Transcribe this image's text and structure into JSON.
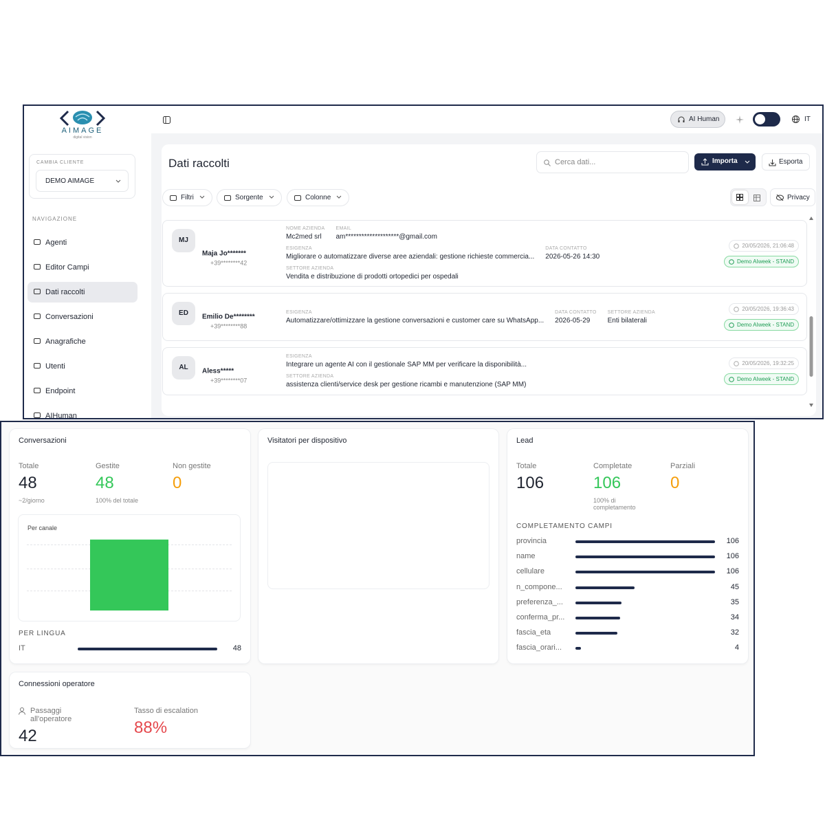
{
  "logo": {
    "name": "AIMAGE",
    "tagline": "digital vision"
  },
  "sidebar": {
    "client_label": "CAMBIA CLIENTE",
    "client": "DEMO AIMAGE",
    "nav_label": "NAVIGAZIONE",
    "nav": [
      "Agenti",
      "Editor Campi",
      "Dati raccolti",
      "Conversazioni",
      "Anagrafiche",
      "Utenti",
      "Endpoint",
      "AIHuman"
    ]
  },
  "topbar": {
    "ai_human": "AI Human",
    "lang": "IT"
  },
  "header": {
    "title": "Dati raccolti",
    "search_placeholder": "Cerca dati...",
    "import": "Importa",
    "export": "Esporta"
  },
  "toolbar": {
    "filters": [
      "Filtri",
      "Sorgente",
      "Colonne"
    ],
    "privacy": "Privacy"
  },
  "records": [
    {
      "initials": "MJ",
      "name": "Maja Jo*******",
      "phone": "+39********42",
      "rows": [
        [
          {
            "label": "NOME AZIENDA",
            "value": "Mc2med srl"
          },
          {
            "label": "EMAIL",
            "value": "am********************@gmail.com"
          }
        ],
        [
          {
            "label": "ESIGENZA",
            "value": "Migliorare o automatizzare diverse aree aziendali: gestione richieste commercia..."
          },
          {
            "label": "DATA CONTATTO",
            "value": "2026-05-26 14:30"
          }
        ],
        [
          {
            "label": "SETTORE AZIENDA",
            "value": "Vendita e distribuzione di prodotti ortopedici per ospedali"
          }
        ]
      ],
      "timestamp": "20/05/2026, 21:06:48",
      "source": "Demo AIweek - STAND"
    },
    {
      "initials": "ED",
      "name": "Emilio De********",
      "phone": "+39********88",
      "rows": [
        [
          {
            "label": "ESIGENZA",
            "value": "Automatizzare/ottimizzare la gestione conversazioni e customer care su WhatsApp..."
          },
          {
            "label": "DATA CONTATTO",
            "value": "2026-05-29"
          },
          {
            "label": "SETTORE AZIENDA",
            "value": "Enti bilaterali"
          }
        ]
      ],
      "timestamp": "20/05/2026, 19:36:43",
      "source": "Demo AIweek - STAND"
    },
    {
      "initials": "AL",
      "name": "Aless*****",
      "phone": "+39********07",
      "rows": [
        [
          {
            "label": "ESIGENZA",
            "value": "Integrare un agente AI con il gestionale SAP MM per verificare la disponibilità..."
          }
        ],
        [
          {
            "label": "SETTORE AZIENDA",
            "value": "assistenza clienti/service desk per gestione ricambi e manutenzione (SAP MM)"
          }
        ]
      ],
      "timestamp": "20/05/2026, 19:32:25",
      "source": "Demo AIweek - STAND"
    }
  ],
  "conversazioni": {
    "title": "Conversazioni",
    "stats": [
      {
        "label": "Totale",
        "value": 48,
        "note": "~2/giorno"
      },
      {
        "label": "Gestite",
        "value": 48,
        "note": "100% del totale"
      },
      {
        "label": "Non gestite",
        "value": 0
      }
    ],
    "per_canale": {
      "title": "Per canale",
      "type": "bar",
      "values": [
        48
      ],
      "color": "#34c759",
      "ylim": [
        0,
        60
      ]
    },
    "per_lingua": {
      "title": "PER LINGUA",
      "categories": [
        "IT"
      ],
      "values": [
        48
      ]
    }
  },
  "visitatori": {
    "title": "Visitatori per dispositivo"
  },
  "lead": {
    "title": "Lead",
    "stats": [
      {
        "label": "Totale",
        "value": 106
      },
      {
        "label": "Completate",
        "value": 106,
        "note": "100% di completamento"
      },
      {
        "label": "Parziali",
        "value": 0
      }
    ],
    "fields_title": "COMPLETAMENTO CAMPI",
    "categories": [
      "provincia",
      "name",
      "cellulare",
      "n_compone...",
      "preferenza_...",
      "conferma_pr...",
      "fascia_eta",
      "fascia_orari..."
    ],
    "values": [
      106,
      106,
      106,
      45,
      35,
      34,
      32,
      4
    ]
  },
  "connessioni": {
    "title": "Connessioni operatore",
    "stats": [
      {
        "label": "Passaggi all'operatore",
        "value": 42
      },
      {
        "label": "Tasso di escalation",
        "value": "88%"
      }
    ]
  }
}
